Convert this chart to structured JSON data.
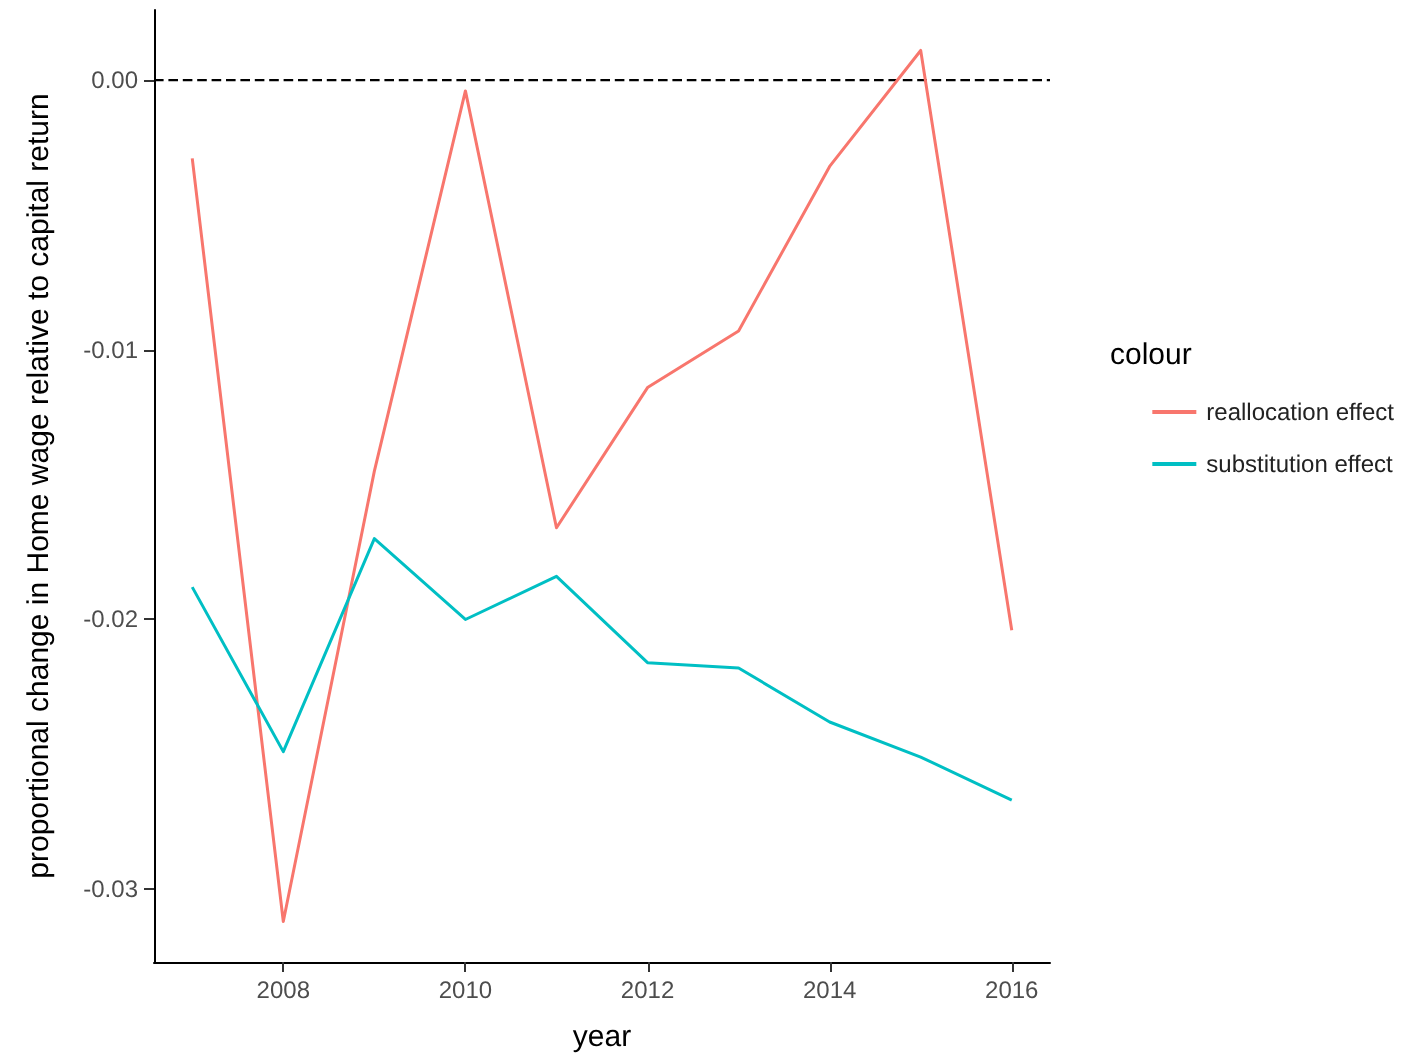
{
  "chart_data": {
    "type": "line",
    "xlabel": "year",
    "ylabel": "proportional change in Home wage relative to capital return",
    "legend_title": "colour",
    "legend": "right",
    "grid": false,
    "x": [
      2007,
      2008,
      2009,
      2010,
      2011,
      2012,
      2013,
      2014,
      2015,
      2016
    ],
    "xlim": [
      2006.58,
      2016.42
    ],
    "xticks": [
      2008,
      2010,
      2012,
      2014,
      2016
    ],
    "ylim": [
      -0.0327,
      0.0026
    ],
    "yticks": [
      {
        "value": 0,
        "label": "0.00"
      },
      {
        "value": -0.01,
        "label": "-0.01"
      },
      {
        "value": -0.02,
        "label": "-0.02"
      },
      {
        "value": -0.03,
        "label": "-0.03"
      }
    ],
    "ref_lines": [
      {
        "axis": "y",
        "value": 0,
        "color": "#000000",
        "line_style": "dashed"
      }
    ],
    "series": [
      {
        "name": "reallocation effect",
        "color": "#f8766d",
        "values": [
          -0.0029,
          -0.0312,
          -0.0145,
          -0.0004,
          -0.0166,
          -0.0114,
          -0.0093,
          -0.0032,
          0.0011,
          -0.0204
        ]
      },
      {
        "name": "substitution effect",
        "color": "#00bfc4",
        "values": [
          -0.0188,
          -0.0249,
          -0.017,
          -0.02,
          -0.0184,
          -0.0216,
          -0.0218,
          -0.0238,
          -0.0251,
          -0.0267
        ]
      }
    ]
  }
}
